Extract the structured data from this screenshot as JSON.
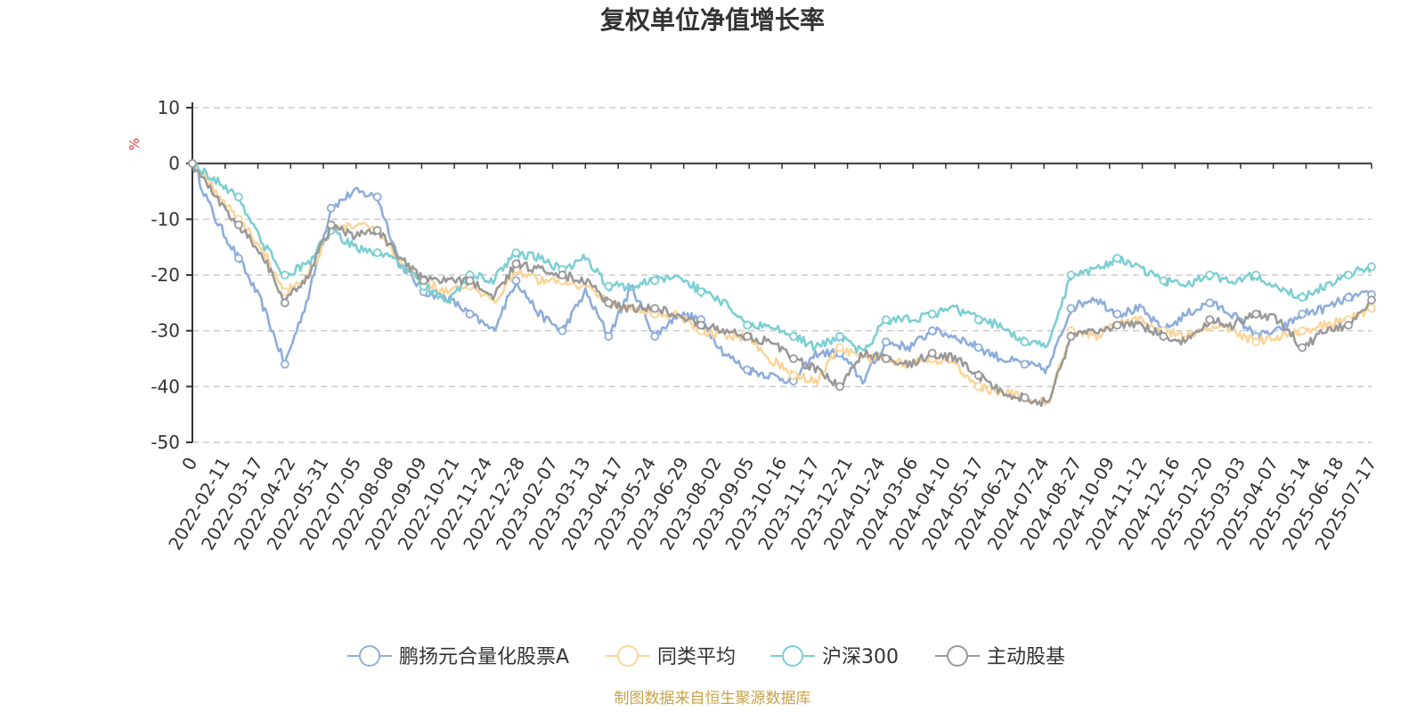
{
  "chart_data": {
    "type": "line",
    "title": "复权单位净值增长率",
    "ylabel": "%",
    "ylim": [
      -50,
      10
    ],
    "yticks": [
      10,
      0,
      -10,
      -20,
      -30,
      -40,
      -50
    ],
    "xticks": [
      "0",
      "2022-02-11",
      "2022-03-17",
      "2022-04-22",
      "2022-05-31",
      "2022-07-05",
      "2022-08-08",
      "2022-09-09",
      "2022-10-21",
      "2022-11-24",
      "2022-12-28",
      "2023-02-07",
      "2023-03-13",
      "2023-04-17",
      "2023-05-24",
      "2023-06-29",
      "2023-08-02",
      "2023-09-05",
      "2023-10-16",
      "2023-11-17",
      "2023-12-21",
      "2024-01-24",
      "2024-03-06",
      "2024-04-10",
      "2024-05-17",
      "2024-06-21",
      "2024-07-24",
      "2024-08-27",
      "2024-10-09",
      "2024-11-12",
      "2024-12-16",
      "2025-01-20",
      "2025-03-03",
      "2025-04-07",
      "2025-05-14",
      "2025-06-18",
      "2025-07-17"
    ],
    "grid": "horizontal-dashed",
    "legend_position": "bottom-center",
    "series": [
      {
        "name": "鹏扬元合量化股票A",
        "color": "#8eaddb",
        "values": [
          0,
          -10,
          -17,
          -25,
          -36,
          -24,
          -8,
          -5,
          -6,
          -18,
          -23,
          -24,
          -27,
          -30,
          -21,
          -27,
          -30,
          -23,
          -31,
          -22,
          -31,
          -27,
          -28,
          -34,
          -37,
          -38,
          -39,
          -34,
          -34,
          -39,
          -32,
          -33,
          -30,
          -31,
          -33,
          -35,
          -36,
          -37,
          -26,
          -24,
          -27,
          -26,
          -30,
          -27,
          -25,
          -27,
          -31,
          -30,
          -27,
          -26,
          -24,
          -23.5
        ]
      },
      {
        "name": "同类平均",
        "color": "#fbd59a",
        "values": [
          0,
          -5,
          -10,
          -15,
          -23,
          -20,
          -12,
          -11,
          -12,
          -18,
          -21,
          -23,
          -22,
          -25,
          -19,
          -21,
          -21,
          -22,
          -25,
          -26,
          -27,
          -27,
          -30,
          -31,
          -31,
          -35,
          -38,
          -39,
          -33,
          -35,
          -35,
          -36,
          -35,
          -36,
          -40,
          -41,
          -42,
          -43,
          -30,
          -31,
          -29,
          -28,
          -30,
          -31,
          -29,
          -30,
          -32,
          -31,
          -30,
          -29,
          -28,
          -26
        ]
      },
      {
        "name": "沪深300",
        "color": "#7ccfd2",
        "values": [
          0,
          -3,
          -6,
          -14,
          -20,
          -18,
          -12,
          -15,
          -16,
          -18,
          -22,
          -25,
          -20,
          -21,
          -16,
          -17,
          -19,
          -17,
          -22,
          -22,
          -21,
          -20,
          -23,
          -25,
          -29,
          -29,
          -31,
          -33,
          -31,
          -34,
          -28,
          -28,
          -27,
          -26,
          -28,
          -29,
          -32,
          -33,
          -20,
          -19,
          -17,
          -19,
          -21,
          -22,
          -20,
          -21,
          -20,
          -22,
          -24,
          -22,
          -20,
          -18.5
        ]
      },
      {
        "name": "主动股基",
        "color": "#999999",
        "values": [
          0,
          -6,
          -11,
          -16,
          -25,
          -20,
          -11,
          -13,
          -12,
          -17,
          -21,
          -21,
          -21,
          -24,
          -18,
          -19,
          -20,
          -21,
          -25,
          -26,
          -26,
          -27,
          -29,
          -30,
          -31,
          -32,
          -35,
          -37,
          -40,
          -34,
          -35,
          -36,
          -34,
          -35,
          -38,
          -41,
          -42,
          -43,
          -31,
          -30,
          -29,
          -29,
          -31,
          -32,
          -28,
          -29,
          -27,
          -28,
          -33,
          -30,
          -29,
          -24.5
        ]
      }
    ]
  },
  "footer": {
    "source": "制图数据来自恒生聚源数据库"
  }
}
